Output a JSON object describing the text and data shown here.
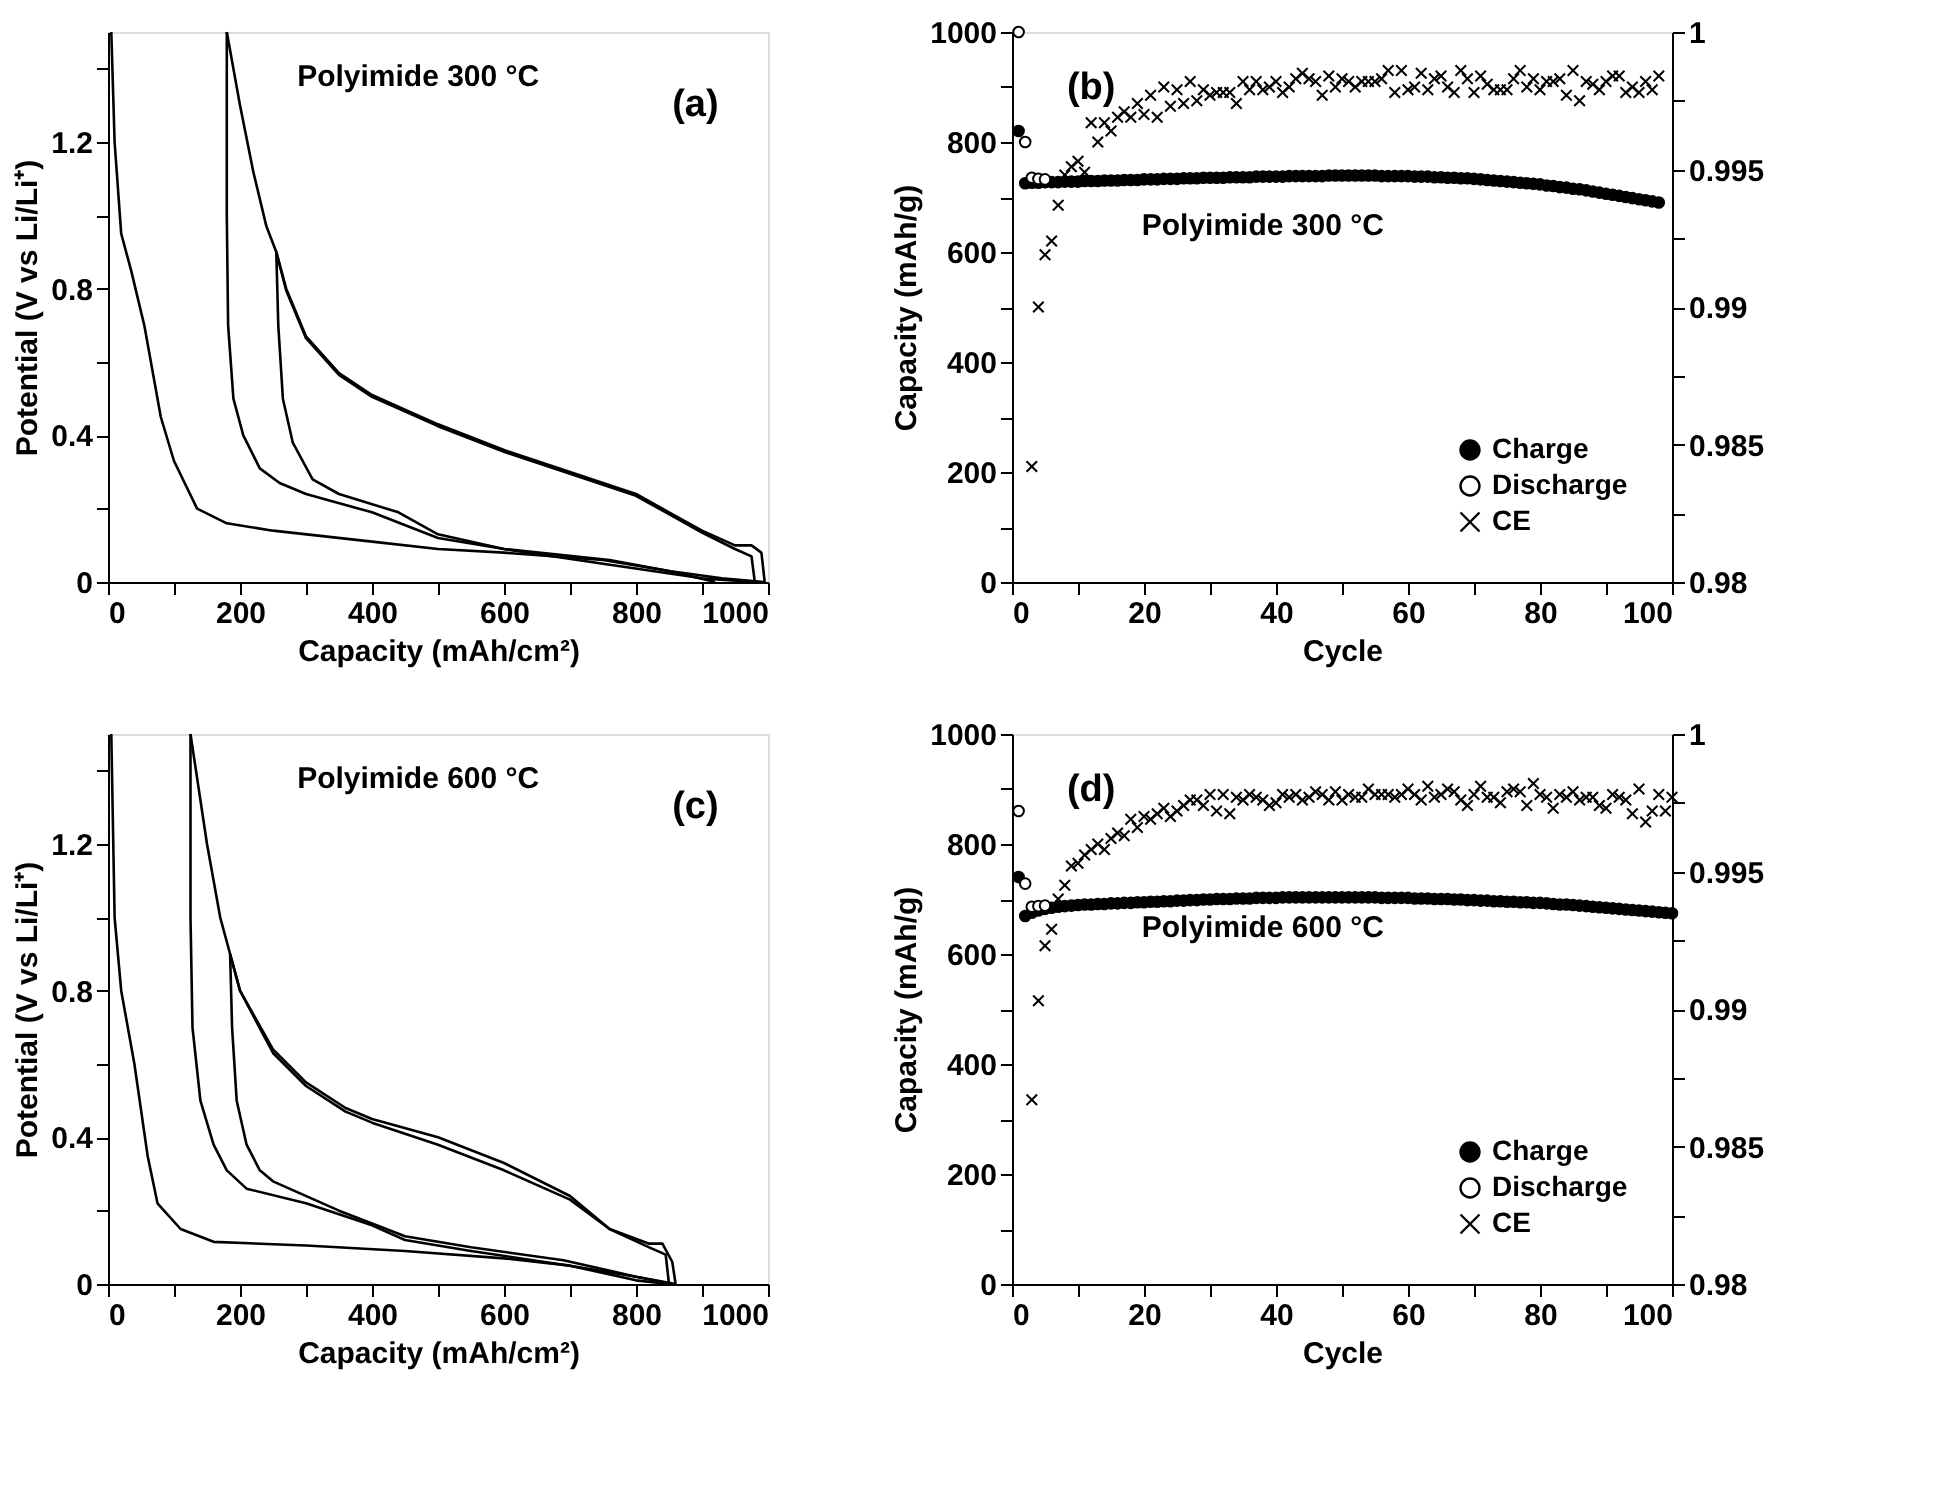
{
  "chart_data": [
    {
      "type": "line",
      "xlabel": "Capacity (mAh/cm²)",
      "ylabel": "Potential (V vs Li/Li⁺)",
      "annotations": [
        "Polyimide 300 °C",
        "(a)"
      ],
      "xlim": [
        0,
        1000
      ],
      "ylim": [
        0,
        1.5
      ],
      "xticks": [
        0,
        {
          "value": 100,
          "label": null
        },
        200,
        {
          "value": 300,
          "label": null
        },
        400,
        {
          "value": 500,
          "label": null
        },
        600,
        {
          "value": 700,
          "label": null
        },
        800,
        {
          "value": 900,
          "label": null
        },
        1000
      ],
      "yticks": [
        0,
        {
          "value": 0.2,
          "label": null
        },
        0.4,
        {
          "value": 0.6,
          "label": null
        },
        0.8,
        {
          "value": 1.0,
          "label": null
        },
        1.2,
        {
          "value": 1.4,
          "label": null
        }
      ],
      "series": [
        {
          "color": "#000000",
          "x": [
            5,
            10,
            20,
            35,
            55,
            80,
            100,
            135,
            180,
            250,
            400,
            500,
            600,
            750,
            850,
            930,
            995
          ],
          "values": [
            1.5,
            1.2,
            0.95,
            0.85,
            0.7,
            0.45,
            0.33,
            0.2,
            0.16,
            0.14,
            0.11,
            0.09,
            0.08,
            0.06,
            0.03,
            0.01,
            0.0
          ]
        },
        {
          "color": "#000000",
          "x": [
            995,
            990,
            975,
            950,
            900,
            850,
            800,
            700,
            600,
            500,
            400,
            350,
            300,
            270,
            255,
            240,
            220,
            200,
            180
          ],
          "values": [
            0.0,
            0.08,
            0.1,
            0.1,
            0.14,
            0.19,
            0.24,
            0.3,
            0.36,
            0.43,
            0.51,
            0.57,
            0.67,
            0.8,
            0.9,
            0.97,
            1.12,
            1.3,
            1.5
          ]
        },
        {
          "color": "#000000",
          "x": [
            180,
            180,
            182,
            190,
            205,
            230,
            260,
            300,
            400,
            500,
            600,
            750,
            900,
            980
          ],
          "values": [
            1.5,
            1.0,
            0.7,
            0.5,
            0.4,
            0.31,
            0.27,
            0.24,
            0.19,
            0.12,
            0.09,
            0.05,
            0.01,
            0.0
          ]
        },
        {
          "color": "#000000",
          "x": [
            980,
            975,
            950,
            900,
            850,
            800,
            700,
            600,
            500,
            400,
            350,
            300,
            270,
            255
          ],
          "values": [
            0.0,
            0.07,
            0.09,
            0.135,
            0.185,
            0.235,
            0.295,
            0.355,
            0.425,
            0.505,
            0.565,
            0.665,
            0.795,
            0.9
          ]
        },
        {
          "color": "#000000",
          "x": [
            255,
            258,
            265,
            280,
            310,
            350,
            440,
            500,
            600,
            760,
            850,
            920
          ],
          "values": [
            0.9,
            0.7,
            0.5,
            0.38,
            0.28,
            0.24,
            0.19,
            0.13,
            0.09,
            0.06,
            0.03,
            0.0
          ]
        }
      ]
    },
    {
      "type": "scatter",
      "xlabel": "Cycle",
      "ylabel": "Capacity (mAh/g)",
      "annotations": [
        "Polyimide 300 °C",
        "(b)"
      ],
      "legend": "bottom right",
      "xlim": [
        0,
        100
      ],
      "ylim": [
        0,
        1000
      ],
      "y2lim": [
        0.98,
        1
      ],
      "xticks": [
        0,
        {
          "value": 10,
          "label": null
        },
        20,
        {
          "value": 30,
          "label": null
        },
        40,
        {
          "value": 50,
          "label": null
        },
        60,
        {
          "value": 70,
          "label": null
        },
        80,
        {
          "value": 90,
          "label": null
        },
        100
      ],
      "yticks": [
        0,
        {
          "value": 100,
          "label": null
        },
        200,
        {
          "value": 300,
          "label": null
        },
        400,
        {
          "value": 500,
          "label": null
        },
        600,
        {
          "value": 700,
          "label": null
        },
        800,
        {
          "value": 900,
          "label": null
        },
        1000
      ],
      "y2ticks": [
        0.98,
        {
          "value": 0.9825,
          "label": null
        },
        0.985,
        {
          "value": 0.9875,
          "label": null
        },
        0.99,
        {
          "value": 0.9925,
          "label": null
        },
        0.995,
        {
          "value": 0.9975,
          "label": null
        },
        1
      ],
      "series": [
        {
          "name": "Charge",
          "color": "#000000",
          "marker": "circle",
          "x": [
            1,
            2,
            3,
            4,
            5,
            6,
            7,
            8,
            9,
            10,
            11,
            12,
            13,
            14,
            15,
            16,
            17,
            18,
            19,
            20,
            21,
            22,
            23,
            24,
            25,
            26,
            27,
            28,
            29,
            30,
            31,
            32,
            33,
            34,
            35,
            36,
            37,
            38,
            39,
            40,
            41,
            42,
            43,
            44,
            45,
            46,
            47,
            48,
            49,
            50,
            51,
            52,
            53,
            54,
            55,
            56,
            57,
            58,
            59,
            60,
            61,
            62,
            63,
            64,
            65,
            66,
            67,
            68,
            69,
            70,
            71,
            72,
            73,
            74,
            75,
            76,
            77,
            78,
            79,
            80,
            81,
            82,
            83,
            84,
            85,
            86,
            87,
            88,
            89,
            90,
            91,
            92,
            93,
            94,
            95,
            96,
            97,
            98
          ],
          "values": [
            820,
            725,
            726,
            726,
            727,
            727,
            727,
            728,
            728,
            728,
            729,
            729,
            729,
            730,
            730,
            730,
            731,
            731,
            731,
            732,
            732,
            732,
            733,
            733,
            733,
            734,
            734,
            734,
            735,
            735,
            735,
            735,
            736,
            736,
            736,
            736,
            737,
            737,
            737,
            737,
            737,
            738,
            738,
            738,
            738,
            738,
            738,
            739,
            739,
            739,
            739,
            739,
            739,
            739,
            739,
            738,
            738,
            738,
            738,
            738,
            737,
            737,
            737,
            736,
            736,
            735,
            735,
            734,
            734,
            733,
            732,
            731,
            730,
            729,
            728,
            727,
            726,
            725,
            724,
            723,
            721,
            720,
            718,
            717,
            715,
            714,
            712,
            710,
            708,
            706,
            704,
            702,
            700,
            698,
            696,
            694,
            692,
            690
          ]
        },
        {
          "name": "Discharge",
          "color": "#ffffff",
          "marker": "circle",
          "x": [
            1,
            2,
            3,
            4,
            5
          ],
          "values": [
            1000,
            800,
            735,
            733,
            732
          ]
        },
        {
          "name": "CE",
          "color": "#000000",
          "marker": "cross",
          "axis": "y2",
          "x": [
            3,
            4,
            5,
            6,
            7,
            8,
            9,
            10,
            11,
            12,
            13,
            14,
            15,
            16,
            17,
            18,
            19,
            20,
            21,
            22,
            23,
            24,
            25,
            26,
            27,
            28,
            29,
            30,
            31,
            32,
            33,
            34,
            35,
            36,
            37,
            38,
            39,
            40,
            41,
            42,
            43,
            44,
            45,
            46,
            47,
            48,
            49,
            50,
            51,
            52,
            53,
            54,
            55,
            56,
            57,
            58,
            59,
            60,
            61,
            62,
            63,
            64,
            65,
            66,
            67,
            68,
            69,
            70,
            71,
            72,
            73,
            74,
            75,
            76,
            77,
            78,
            79,
            80,
            81,
            82,
            83,
            84,
            85,
            86,
            87,
            88,
            89,
            90,
            91,
            92,
            93,
            94,
            95,
            96,
            97,
            98
          ],
          "values": [
            0.9842,
            0.99,
            0.9919,
            0.9924,
            0.9937,
            0.9948,
            0.9951,
            0.9953,
            0.9949,
            0.9967,
            0.996,
            0.9967,
            0.9964,
            0.9969,
            0.9971,
            0.9969,
            0.9974,
            0.997,
            0.9977,
            0.9969,
            0.998,
            0.9973,
            0.9979,
            0.9974,
            0.9982,
            0.9975,
            0.9979,
            0.9977,
            0.9978,
            0.9978,
            0.9978,
            0.9974,
            0.9982,
            0.9979,
            0.9982,
            0.9979,
            0.998,
            0.9982,
            0.9978,
            0.998,
            0.9983,
            0.9985,
            0.9983,
            0.9982,
            0.9977,
            0.9984,
            0.998,
            0.9983,
            0.9982,
            0.998,
            0.9982,
            0.9982,
            0.9982,
            0.9983,
            0.9986,
            0.9978,
            0.9986,
            0.9979,
            0.998,
            0.9985,
            0.9979,
            0.9983,
            0.9984,
            0.998,
            0.9978,
            0.9986,
            0.9983,
            0.9978,
            0.9984,
            0.9981,
            0.9979,
            0.9979,
            0.9979,
            0.9983,
            0.9986,
            0.998,
            0.9983,
            0.9979,
            0.9982,
            0.9982,
            0.9983,
            0.9977,
            0.9986,
            0.9975,
            0.9982,
            0.9981,
            0.9979,
            0.9982,
            0.9984,
            0.9984,
            0.9978,
            0.998,
            0.9978,
            0.9982,
            0.9979,
            0.9984
          ]
        }
      ]
    },
    {
      "type": "line",
      "xlabel": "Capacity (mAh/cm²)",
      "ylabel": "Potential (V vs Li/Li⁺)",
      "annotations": [
        "Polyimide 600 °C",
        "(c)"
      ],
      "xlim": [
        0,
        1000
      ],
      "ylim": [
        0,
        1.5
      ],
      "xticks": [
        0,
        {
          "value": 100,
          "label": null
        },
        200,
        {
          "value": 300,
          "label": null
        },
        400,
        {
          "value": 500,
          "label": null
        },
        600,
        {
          "value": 700,
          "label": null
        },
        800,
        {
          "value": 900,
          "label": null
        },
        1000
      ],
      "yticks": [
        0,
        {
          "value": 0.2,
          "label": null
        },
        0.4,
        {
          "value": 0.6,
          "label": null
        },
        0.8,
        {
          "value": 1.0,
          "label": null
        },
        1.2,
        {
          "value": 1.4,
          "label": null
        }
      ],
      "series": [
        {
          "color": "#000000",
          "x": [
            5,
            10,
            20,
            40,
            60,
            75,
            110,
            160,
            300,
            450,
            600,
            700,
            800,
            860
          ],
          "values": [
            1.5,
            1.0,
            0.8,
            0.6,
            0.35,
            0.22,
            0.15,
            0.115,
            0.105,
            0.09,
            0.07,
            0.05,
            0.02,
            0.0
          ]
        },
        {
          "color": "#000000",
          "x": [
            860,
            855,
            840,
            820,
            760,
            700,
            600,
            500,
            400,
            360,
            300,
            250,
            200,
            185,
            170,
            150,
            125
          ],
          "values": [
            0.0,
            0.06,
            0.11,
            0.11,
            0.15,
            0.24,
            0.33,
            0.4,
            0.45,
            0.48,
            0.55,
            0.64,
            0.8,
            0.9,
            1.0,
            1.2,
            1.5
          ]
        },
        {
          "color": "#000000",
          "x": [
            125,
            125,
            128,
            140,
            160,
            180,
            210,
            300,
            400,
            450,
            550,
            700,
            800,
            850
          ],
          "values": [
            1.5,
            1.0,
            0.7,
            0.5,
            0.38,
            0.31,
            0.26,
            0.22,
            0.16,
            0.12,
            0.09,
            0.05,
            0.01,
            0.0
          ]
        },
        {
          "color": "#000000",
          "x": [
            850,
            845,
            820,
            760,
            700,
            600,
            500,
            400,
            360,
            300,
            250,
            200,
            185
          ],
          "values": [
            0.0,
            0.08,
            0.1,
            0.15,
            0.23,
            0.31,
            0.38,
            0.44,
            0.47,
            0.54,
            0.63,
            0.8,
            0.9
          ]
        },
        {
          "color": "#000000",
          "x": [
            185,
            188,
            195,
            210,
            230,
            250,
            350,
            450,
            550,
            690,
            800,
            855
          ],
          "values": [
            0.9,
            0.7,
            0.5,
            0.38,
            0.31,
            0.28,
            0.2,
            0.13,
            0.1,
            0.065,
            0.02,
            0.0
          ]
        }
      ]
    },
    {
      "type": "scatter",
      "xlabel": "Cycle",
      "ylabel": "Capacity (mAh/g)",
      "annotations": [
        "Polyimide 600 °C",
        "(d)"
      ],
      "legend": "bottom right",
      "xlim": [
        0,
        100
      ],
      "ylim": [
        0,
        1000
      ],
      "y2lim": [
        0.98,
        1
      ],
      "xticks": [
        0,
        {
          "value": 10,
          "label": null
        },
        20,
        {
          "value": 30,
          "label": null
        },
        40,
        {
          "value": 50,
          "label": null
        },
        60,
        {
          "value": 70,
          "label": null
        },
        80,
        {
          "value": 90,
          "label": null
        },
        100
      ],
      "yticks": [
        0,
        {
          "value": 100,
          "label": null
        },
        200,
        {
          "value": 300,
          "label": null
        },
        400,
        {
          "value": 500,
          "label": null
        },
        600,
        {
          "value": 700,
          "label": null
        },
        800,
        {
          "value": 900,
          "label": null
        },
        1000
      ],
      "y2ticks": [
        0.98,
        {
          "value": 0.9825,
          "label": null
        },
        0.985,
        {
          "value": 0.9875,
          "label": null
        },
        0.99,
        {
          "value": 0.9925,
          "label": null
        },
        0.995,
        {
          "value": 0.9975,
          "label": null
        },
        1
      ],
      "series": [
        {
          "name": "Charge",
          "color": "#000000",
          "marker": "circle",
          "x": [
            1,
            2,
            3,
            4,
            5,
            6,
            7,
            8,
            9,
            10,
            11,
            12,
            13,
            14,
            15,
            16,
            17,
            18,
            19,
            20,
            21,
            22,
            23,
            24,
            25,
            26,
            27,
            28,
            29,
            30,
            31,
            32,
            33,
            34,
            35,
            36,
            37,
            38,
            39,
            40,
            41,
            42,
            43,
            44,
            45,
            46,
            47,
            48,
            49,
            50,
            51,
            52,
            53,
            54,
            55,
            56,
            57,
            58,
            59,
            60,
            61,
            62,
            63,
            64,
            65,
            66,
            67,
            68,
            69,
            70,
            71,
            72,
            73,
            74,
            75,
            76,
            77,
            78,
            79,
            80,
            81,
            82,
            83,
            84,
            85,
            86,
            87,
            88,
            89,
            90,
            91,
            92,
            93,
            94,
            95,
            96,
            97,
            98,
            99,
            100
          ],
          "values": [
            740,
            669,
            675,
            679,
            682,
            684,
            686,
            687,
            688,
            689,
            690,
            690,
            691,
            691,
            692,
            692,
            693,
            693,
            694,
            694,
            695,
            695,
            696,
            696,
            697,
            697,
            698,
            698,
            699,
            699,
            700,
            700,
            700,
            701,
            701,
            701,
            702,
            702,
            702,
            702,
            703,
            703,
            703,
            703,
            703,
            703,
            703,
            703,
            703,
            703,
            703,
            703,
            703,
            703,
            703,
            702,
            702,
            702,
            702,
            702,
            701,
            701,
            701,
            700,
            700,
            700,
            699,
            699,
            698,
            698,
            697,
            697,
            696,
            696,
            695,
            695,
            694,
            694,
            693,
            693,
            692,
            691,
            690,
            690,
            689,
            688,
            687,
            686,
            685,
            684,
            683,
            682,
            681,
            680,
            679,
            678,
            677,
            676,
            675,
            674
          ]
        },
        {
          "name": "Discharge",
          "color": "#ffffff",
          "marker": "circle",
          "x": [
            1,
            2,
            3,
            4,
            5
          ],
          "values": [
            860,
            728,
            686,
            687,
            688
          ]
        },
        {
          "name": "CE",
          "color": "#000000",
          "marker": "cross",
          "axis": "y2",
          "x": [
            3,
            4,
            5,
            6,
            7,
            8,
            9,
            10,
            11,
            12,
            13,
            14,
            15,
            16,
            17,
            18,
            19,
            20,
            21,
            22,
            23,
            24,
            25,
            26,
            27,
            28,
            29,
            30,
            31,
            32,
            33,
            34,
            35,
            36,
            37,
            38,
            39,
            40,
            41,
            42,
            43,
            44,
            45,
            46,
            47,
            48,
            49,
            50,
            51,
            52,
            53,
            54,
            55,
            56,
            57,
            58,
            59,
            60,
            61,
            62,
            63,
            64,
            65,
            66,
            67,
            68,
            69,
            70,
            71,
            72,
            73,
            74,
            75,
            76,
            77,
            78,
            79,
            80,
            81,
            82,
            83,
            84,
            85,
            86,
            87,
            88,
            89,
            90,
            91,
            92,
            93,
            94,
            95,
            96,
            97,
            98,
            99,
            100
          ],
          "values": [
            0.9867,
            0.9903,
            0.9923,
            0.9929,
            0.994,
            0.9945,
            0.9952,
            0.9953,
            0.9956,
            0.9958,
            0.996,
            0.9958,
            0.9962,
            0.9964,
            0.9963,
            0.9969,
            0.9966,
            0.997,
            0.9969,
            0.9971,
            0.9973,
            0.997,
            0.9972,
            0.9974,
            0.9976,
            0.9976,
            0.9974,
            0.9978,
            0.9972,
            0.9978,
            0.9971,
            0.9977,
            0.9976,
            0.9978,
            0.9977,
            0.9976,
            0.9974,
            0.9975,
            0.9978,
            0.9977,
            0.9978,
            0.9976,
            0.9977,
            0.9979,
            0.9978,
            0.9976,
            0.9979,
            0.9976,
            0.9978,
            0.9977,
            0.9977,
            0.998,
            0.9978,
            0.9978,
            0.9978,
            0.9977,
            0.9978,
            0.998,
            0.9978,
            0.9976,
            0.9981,
            0.9977,
            0.9978,
            0.998,
            0.9979,
            0.9976,
            0.9974,
            0.9978,
            0.9981,
            0.9977,
            0.9977,
            0.9975,
            0.9979,
            0.998,
            0.9979,
            0.9974,
            0.9982,
            0.9978,
            0.9977,
            0.9973,
            0.9978,
            0.9977,
            0.9979,
            0.9976,
            0.9977,
            0.9977,
            0.9974,
            0.9973,
            0.9978,
            0.9977,
            0.9976,
            0.9971,
            0.998,
            0.9968,
            0.9972,
            0.9978,
            0.9972,
            0.9977
          ]
        }
      ]
    }
  ]
}
